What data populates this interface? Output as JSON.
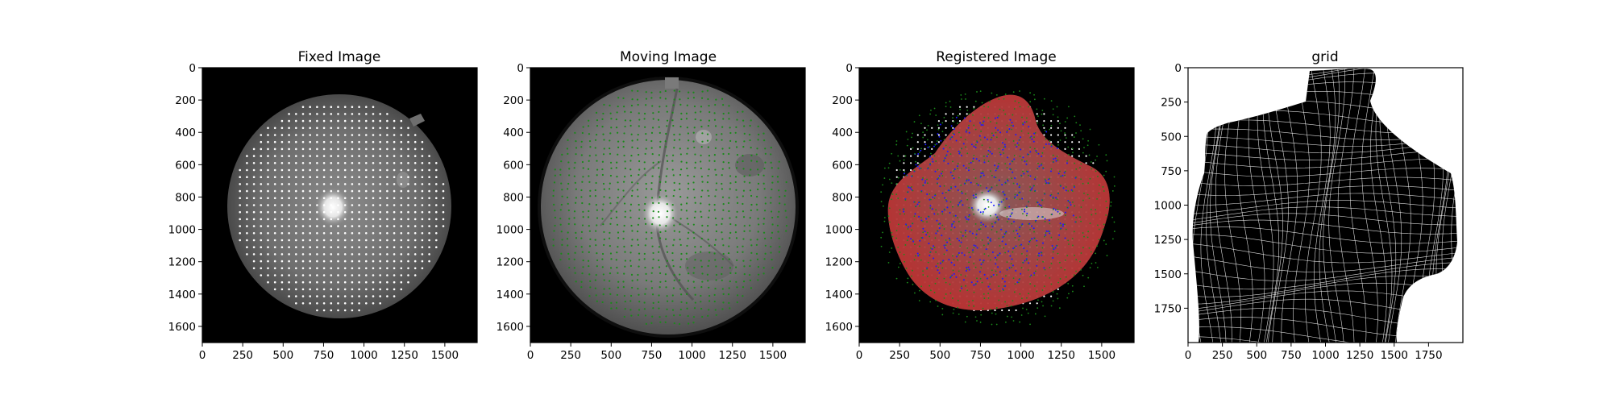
{
  "figure": {
    "panels": [
      {
        "id": "fixed",
        "title": "Fixed Image",
        "xticks": [
          "0",
          "250",
          "500",
          "750",
          "1000",
          "1250",
          "1500"
        ],
        "yticks": [
          "0",
          "200",
          "400",
          "600",
          "800",
          "1000",
          "1200",
          "1400",
          "1600"
        ]
      },
      {
        "id": "moving",
        "title": "Moving Image",
        "xticks": [
          "0",
          "250",
          "500",
          "750",
          "1000",
          "1250",
          "1500"
        ],
        "yticks": [
          "0",
          "200",
          "400",
          "600",
          "800",
          "1000",
          "1200",
          "1400",
          "1600"
        ]
      },
      {
        "id": "registered",
        "title": "Registered Image",
        "xticks": [
          "0",
          "250",
          "500",
          "750",
          "1000",
          "1250",
          "1500"
        ],
        "yticks": [
          "0",
          "200",
          "400",
          "600",
          "800",
          "1000",
          "1200",
          "1400",
          "1600"
        ]
      },
      {
        "id": "grid",
        "title": "grid",
        "xticks": [
          "0",
          "250",
          "500",
          "750",
          "1000",
          "1250",
          "1500",
          "1750"
        ],
        "yticks": [
          "0",
          "250",
          "500",
          "750",
          "1000",
          "1250",
          "1500",
          "1750"
        ]
      }
    ],
    "colors": {
      "background": "#ffffff",
      "image_background": "#000000",
      "fixed_points": "#ffffff",
      "moving_points": "#1a8a1a",
      "registered_points": "#1a1aff",
      "overlay": "#cc2020",
      "grid_fill": "#000000",
      "grid_lines": "#ffffff"
    }
  }
}
